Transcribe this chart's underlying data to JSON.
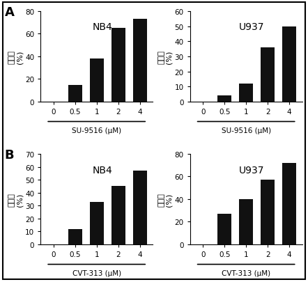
{
  "panels": [
    {
      "row": 0,
      "col": 0,
      "title": "NB4",
      "xlabel": "SU-9516 (μM)",
      "ylabel_chinese": "抑制率",
      "ylabel_pct": "(%)",
      "categories": [
        "0",
        "0.5",
        "1",
        "2",
        "4"
      ],
      "values": [
        0,
        15,
        38,
        65,
        73
      ],
      "ylim": [
        0,
        80
      ],
      "yticks": [
        0,
        20,
        40,
        60,
        80
      ]
    },
    {
      "row": 0,
      "col": 1,
      "title": "U937",
      "xlabel": "SU-9516 (μM)",
      "ylabel_chinese": "抑制率",
      "ylabel_pct": "(%)",
      "categories": [
        "0",
        "0.5",
        "1",
        "2",
        "4"
      ],
      "values": [
        0,
        4,
        12,
        36,
        50
      ],
      "ylim": [
        0,
        60
      ],
      "yticks": [
        0,
        10,
        20,
        30,
        40,
        50,
        60
      ]
    },
    {
      "row": 1,
      "col": 0,
      "title": "NB4",
      "xlabel": "CVT-313 (μM)",
      "ylabel_chinese": "抑制率",
      "ylabel_pct": "(%)",
      "categories": [
        "0",
        "0.5",
        "1",
        "2",
        "4"
      ],
      "values": [
        0,
        12,
        33,
        45,
        57
      ],
      "ylim": [
        0,
        70
      ],
      "yticks": [
        0,
        10,
        20,
        30,
        40,
        50,
        60,
        70
      ]
    },
    {
      "row": 1,
      "col": 1,
      "title": "U937",
      "xlabel": "CVT-313 (μM)",
      "ylabel_chinese": "抑制率",
      "ylabel_pct": "(%)",
      "categories": [
        "0",
        "0.5",
        "1",
        "2",
        "4"
      ],
      "values": [
        0,
        27,
        40,
        57,
        72
      ],
      "ylim": [
        0,
        80
      ],
      "yticks": [
        0,
        20,
        40,
        60,
        80
      ]
    }
  ],
  "bar_color": "#111111",
  "bar_width": 0.65,
  "background_color": "#ffffff",
  "panel_label_fontsize": 13,
  "title_fontsize": 10,
  "axis_fontsize": 7.5,
  "tick_fontsize": 7.5,
  "cjk_fontsize": 8
}
